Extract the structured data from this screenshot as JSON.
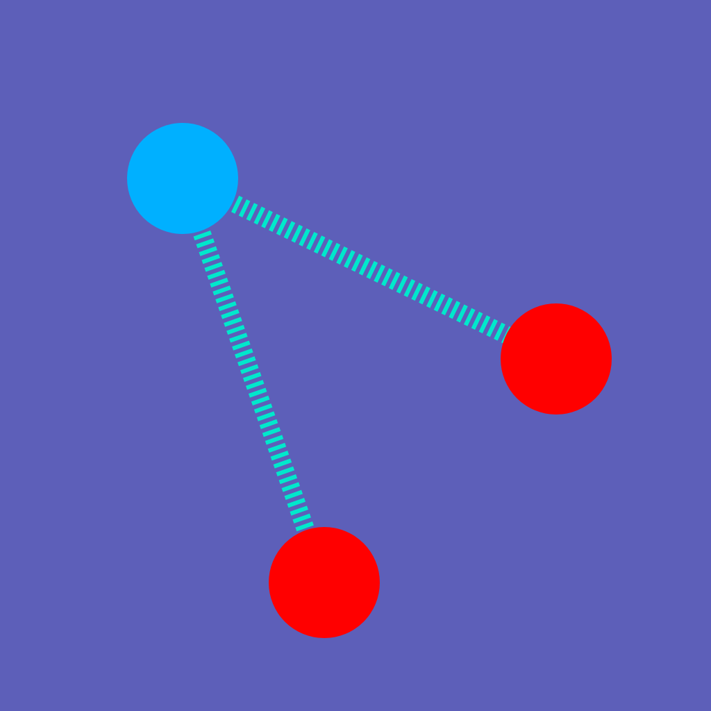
{
  "colors": {
    "background": "#5d5fb9",
    "hub_node": "#00b0ff",
    "leaf_node": "#ff0000",
    "edge": "#00e8cc"
  },
  "diagram": {
    "nodes": [
      {
        "id": "hub",
        "role": "hub"
      },
      {
        "id": "right",
        "role": "leaf"
      },
      {
        "id": "bottom",
        "role": "leaf"
      }
    ],
    "edges": [
      {
        "from": "hub",
        "to": "right"
      },
      {
        "from": "hub",
        "to": "bottom"
      }
    ]
  }
}
